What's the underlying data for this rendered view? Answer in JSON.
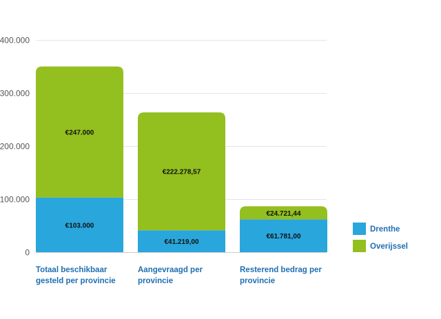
{
  "chart_data": {
    "type": "bar",
    "stacked": true,
    "categories": [
      [
        "Totaal beschikbaar",
        "gesteld per provincie"
      ],
      [
        "Aangevraagd per",
        "provincie"
      ],
      [
        "Resterend bedrag per",
        "provincie"
      ]
    ],
    "series": [
      {
        "name": "Drenthe",
        "color": "#29a6dc",
        "values": [
          103000,
          41219,
          61781
        ],
        "labels": [
          "€103.000",
          "€41.219,00",
          "€61.781,00"
        ]
      },
      {
        "name": "Overijssel",
        "color": "#93bf1f",
        "values": [
          247000,
          222278.57,
          24721.44
        ],
        "labels": [
          "€247.000",
          "€222.278,57",
          "€24.721,44"
        ]
      }
    ],
    "yticks": [
      "0",
      "100.000",
      "200.000",
      "300.000",
      "400.000"
    ],
    "ytick_values": [
      0,
      100000,
      200000,
      300000,
      400000
    ],
    "ylim": [
      0,
      400000
    ],
    "grid": true,
    "legend_position": "right",
    "title": "",
    "xlabel": "",
    "ylabel": ""
  }
}
